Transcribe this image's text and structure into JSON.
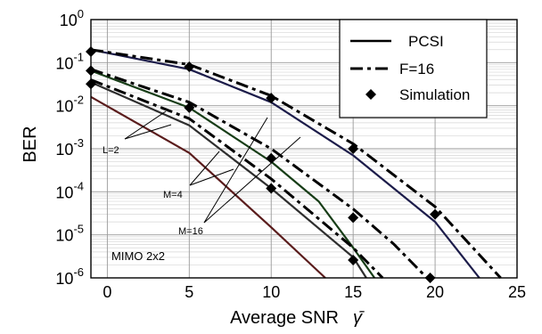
{
  "chart_data": {
    "type": "line",
    "xlabel": "Average SNR",
    "xlabel_symbol": "γ̄",
    "ylabel": "BER",
    "xlim": [
      -1,
      25
    ],
    "ylim_log10": [
      -6,
      0
    ],
    "y_scale": "log",
    "grid": true,
    "legend_position": "top-right",
    "x_ticks": [
      "0",
      "5",
      "10",
      "15",
      "20",
      "25"
    ],
    "y_ticks": [
      {
        "base": "10",
        "exp": "0"
      },
      {
        "base": "10",
        "exp": "-1"
      },
      {
        "base": "10",
        "exp": "-2"
      },
      {
        "base": "10",
        "exp": "-3"
      },
      {
        "base": "10",
        "exp": "-4"
      },
      {
        "base": "10",
        "exp": "-5"
      },
      {
        "base": "10",
        "exp": "-6"
      }
    ],
    "legend": [
      {
        "label": "PCSI",
        "style": "solid"
      },
      {
        "label": "F=16",
        "style": "dashdot"
      },
      {
        "label": "Simulation",
        "style": "diamond"
      }
    ],
    "annotations": [
      "L=2",
      "M=4",
      "M=16",
      "MIMO 2x2"
    ],
    "series": [
      {
        "style": "solid",
        "color": "#1c1c4a",
        "x": [
          -1,
          5,
          10,
          15,
          20,
          22.7
        ],
        "y": [
          0.2,
          0.07,
          0.012,
          0.0007,
          2e-05,
          1e-06
        ]
      },
      {
        "style": "dashdot",
        "color": "#000000",
        "x": [
          -1,
          5,
          10,
          15,
          20,
          24
        ],
        "y": [
          0.2,
          0.09,
          0.017,
          0.0013,
          4.5e-05,
          1e-06
        ]
      },
      {
        "style": "solid",
        "color": "#173d17",
        "x": [
          -1,
          5,
          10,
          12.9,
          15,
          16.3
        ],
        "y": [
          0.065,
          0.009,
          0.0005,
          6e-05,
          5e-06,
          1e-06
        ]
      },
      {
        "style": "dashdot",
        "color": "#000000",
        "x": [
          -1,
          5,
          10,
          15,
          17.5,
          19.5
        ],
        "y": [
          0.07,
          0.012,
          0.001,
          4e-05,
          6e-06,
          1e-06
        ]
      },
      {
        "style": "solid",
        "color": "#2e2e2e",
        "x": [
          -1,
          5,
          10,
          15,
          15.8
        ],
        "y": [
          0.035,
          0.0035,
          0.00012,
          3e-06,
          1e-06
        ]
      },
      {
        "style": "dashdot",
        "color": "#000000",
        "x": [
          -1,
          5,
          10,
          15,
          16.8
        ],
        "y": [
          0.04,
          0.005,
          0.0002,
          5e-06,
          1e-06
        ]
      },
      {
        "style": "solid",
        "color": "#5a1c1c",
        "x": [
          -1,
          5,
          10,
          13.3
        ],
        "y": [
          0.016,
          0.0008,
          1.5e-05,
          1e-06
        ]
      }
    ],
    "simulation": {
      "x": [
        -1,
        5,
        10,
        15,
        20,
        -1,
        5,
        10,
        15,
        -1,
        10,
        15,
        19.7
      ],
      "y": [
        0.18,
        0.08,
        0.015,
        0.001,
        3e-05,
        0.065,
        0.009,
        0.0006,
        2.5e-05,
        0.032,
        0.00012,
        2.6e-06,
        1e-06
      ]
    }
  }
}
